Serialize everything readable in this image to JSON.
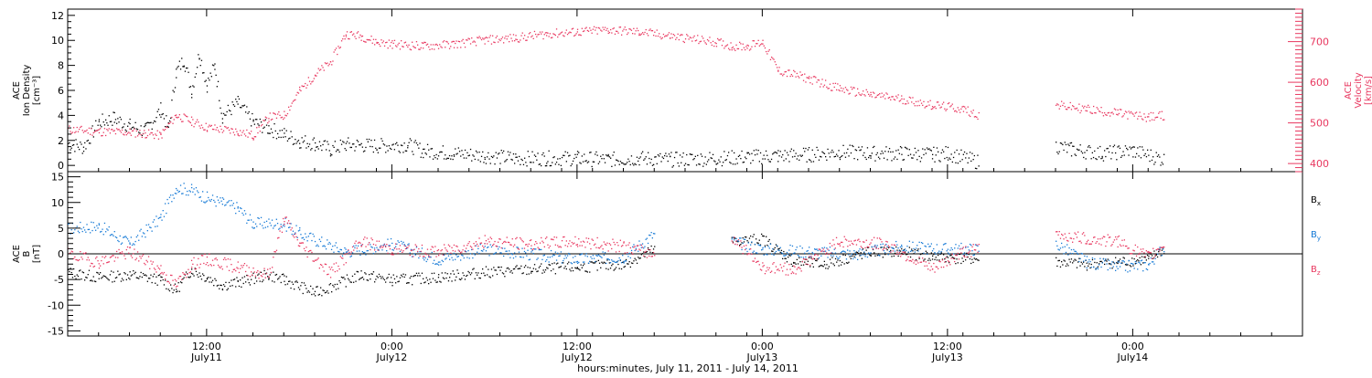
{
  "colors": {
    "black": "#000000",
    "pink": "#e8375f",
    "blue": "#1479d6"
  },
  "xaxis": {
    "label": "hours:minutes, July 11, 2011 - July 14, 2011",
    "range": [
      "2011-07-11 03:00",
      "2011-07-14 11:00"
    ],
    "ticks": [
      {
        "time": "2011-07-11 12:00",
        "line1": "12:00",
        "line2": "July11"
      },
      {
        "time": "2011-07-12 00:00",
        "line1": "0:00",
        "line2": "July12"
      },
      {
        "time": "2011-07-12 12:00",
        "line1": "12:00",
        "line2": "July12"
      },
      {
        "time": "2011-07-13 00:00",
        "line1": "0:00",
        "line2": "July13"
      },
      {
        "time": "2011-07-13 12:00",
        "line1": "12:00",
        "line2": "July13"
      },
      {
        "time": "2011-07-14 00:00",
        "line1": "0:00",
        "line2": "July14"
      }
    ]
  },
  "chart_data": [
    {
      "type": "scatter",
      "panel": "top",
      "ylabel_left": [
        "ACE",
        "Ion Density",
        "[cm⁻³]"
      ],
      "ylabel_right": [
        "ACE",
        "Velocity",
        "[km/s]"
      ],
      "ylim_left": [
        -0.5,
        12.5
      ],
      "ytick_left": [
        0,
        2,
        4,
        6,
        8,
        10,
        12
      ],
      "ylim_right": [
        380,
        780
      ],
      "ytick_right": [
        400,
        500,
        600,
        700
      ],
      "series": [
        {
          "axis": "left",
          "color": "#000000",
          "points": [
            [
              "2011-07-11 03:00",
              1.8
            ],
            [
              "2011-07-11 04:00",
              1.5
            ],
            [
              "2011-07-11 05:00",
              3.5
            ],
            [
              "2011-07-11 06:00",
              3.8
            ],
            [
              "2011-07-11 07:00",
              3.2
            ],
            [
              "2011-07-11 08:00",
              2.8
            ],
            [
              "2011-07-11 09:00",
              4.5
            ],
            [
              "2011-07-11 09:30",
              3.0
            ],
            [
              "2011-07-11 10:00",
              7.5
            ],
            [
              "2011-07-11 10:30",
              8.5
            ],
            [
              "2011-07-11 11:00",
              6.0
            ],
            [
              "2011-07-11 11:30",
              9.0
            ],
            [
              "2011-07-11 12:00",
              6.5
            ],
            [
              "2011-07-11 12:30",
              8.0
            ],
            [
              "2011-07-11 13:00",
              4.0
            ],
            [
              "2011-07-11 14:00",
              5.0
            ],
            [
              "2011-07-11 15:00",
              3.5
            ],
            [
              "2011-07-11 16:00",
              3.0
            ],
            [
              "2011-07-11 17:00",
              2.5
            ],
            [
              "2011-07-11 18:00",
              2.0
            ],
            [
              "2011-07-11 19:00",
              1.8
            ],
            [
              "2011-07-11 20:00",
              1.3
            ],
            [
              "2011-07-11 21:00",
              1.7
            ],
            [
              "2011-07-11 23:00",
              1.6
            ],
            [
              "2011-07-12 01:00",
              1.7
            ],
            [
              "2011-07-12 02:00",
              1.2
            ],
            [
              "2011-07-12 04:00",
              1.0
            ],
            [
              "2011-07-12 06:00",
              0.8
            ],
            [
              "2011-07-12 08:00",
              0.6
            ],
            [
              "2011-07-12 10:00",
              0.6
            ],
            [
              "2011-07-12 12:00",
              0.6
            ],
            [
              "2011-07-12 14:00",
              0.5
            ],
            [
              "2011-07-12 16:00",
              0.6
            ],
            [
              "2011-07-12 18:00",
              0.5
            ],
            [
              "2011-07-12 21:00",
              0.6
            ],
            [
              "2011-07-12 23:00",
              0.7
            ],
            [
              "2011-07-13 01:00",
              0.8
            ],
            [
              "2011-07-13 03:00",
              0.9
            ],
            [
              "2011-07-13 05:00",
              1.1
            ],
            [
              "2011-07-13 07:00",
              1.0
            ],
            [
              "2011-07-13 09:00",
              1.0
            ],
            [
              "2011-07-13 11:00",
              0.9
            ],
            [
              "2011-07-13 12:00",
              1.0
            ],
            [
              "2011-07-13 14:00",
              0.3
            ],
            [
              "2011-07-13 19:00",
              1.6
            ],
            [
              "2011-07-13 20:00",
              1.3
            ],
            [
              "2011-07-13 22:00",
              1.0
            ],
            [
              "2011-07-14 00:00",
              1.2
            ],
            [
              "2011-07-14 02:00",
              0.5
            ]
          ]
        },
        {
          "axis": "right",
          "color": "#e8375f",
          "points": [
            [
              "2011-07-11 03:00",
              485
            ],
            [
              "2011-07-11 05:00",
              480
            ],
            [
              "2011-07-11 07:00",
              478
            ],
            [
              "2011-07-11 08:00",
              475
            ],
            [
              "2011-07-11 09:00",
              470
            ],
            [
              "2011-07-11 10:00",
              520
            ],
            [
              "2011-07-11 11:00",
              505
            ],
            [
              "2011-07-11 12:00",
              490
            ],
            [
              "2011-07-11 14:00",
              480
            ],
            [
              "2011-07-11 15:00",
              470
            ],
            [
              "2011-07-11 16:00",
              515
            ],
            [
              "2011-07-11 17:00",
              520
            ],
            [
              "2011-07-11 18:00",
              580
            ],
            [
              "2011-07-11 19:00",
              620
            ],
            [
              "2011-07-11 20:00",
              650
            ],
            [
              "2011-07-11 21:00",
              720
            ],
            [
              "2011-07-11 22:00",
              715
            ],
            [
              "2011-07-11 23:00",
              700
            ],
            [
              "2011-07-12 00:00",
              695
            ],
            [
              "2011-07-12 02:00",
              690
            ],
            [
              "2011-07-12 04:00",
              695
            ],
            [
              "2011-07-12 06:00",
              705
            ],
            [
              "2011-07-12 08:00",
              710
            ],
            [
              "2011-07-12 10:00",
              720
            ],
            [
              "2011-07-12 12:00",
              725
            ],
            [
              "2011-07-12 14:00",
              730
            ],
            [
              "2011-07-12 16:00",
              725
            ],
            [
              "2011-07-12 18:00",
              715
            ],
            [
              "2011-07-12 21:00",
              700
            ],
            [
              "2011-07-12 22:00",
              690
            ],
            [
              "2011-07-12 23:00",
              690
            ],
            [
              "2011-07-13 00:00",
              700
            ],
            [
              "2011-07-13 01:00",
              630
            ],
            [
              "2011-07-13 03:00",
              610
            ],
            [
              "2011-07-13 05:00",
              585
            ],
            [
              "2011-07-13 07:00",
              570
            ],
            [
              "2011-07-13 09:00",
              560
            ],
            [
              "2011-07-13 11:00",
              545
            ],
            [
              "2011-07-13 13:00",
              535
            ],
            [
              "2011-07-13 14:00",
              520
            ],
            [
              "2011-07-13 19:00",
              545
            ],
            [
              "2011-07-13 21:00",
              535
            ],
            [
              "2011-07-13 23:00",
              525
            ],
            [
              "2011-07-14 01:00",
              515
            ],
            [
              "2011-07-14 02:00",
              520
            ]
          ]
        }
      ]
    },
    {
      "type": "scatter",
      "panel": "bottom",
      "ylabel": [
        "ACE",
        "B",
        "[nT]"
      ],
      "ylim": [
        -16,
        16
      ],
      "yticks": [
        -15,
        -10,
        -5,
        0,
        5,
        10,
        15
      ],
      "zero_line": true,
      "legend": [
        {
          "label": "B",
          "sub": "x",
          "color": "#000000"
        },
        {
          "label": "B",
          "sub": "y",
          "color": "#1479d6"
        },
        {
          "label": "B",
          "sub": "z",
          "color": "#e8375f"
        }
      ],
      "series": [
        {
          "name": "Bx",
          "color": "#000000",
          "points": [
            [
              "2011-07-11 03:00",
              -3.5
            ],
            [
              "2011-07-11 05:00",
              -4.5
            ],
            [
              "2011-07-11 07:00",
              -4.0
            ],
            [
              "2011-07-11 09:00",
              -5.0
            ],
            [
              "2011-07-11 10:00",
              -7.0
            ],
            [
              "2011-07-11 11:00",
              -3.0
            ],
            [
              "2011-07-11 12:00",
              -4.5
            ],
            [
              "2011-07-11 13:00",
              -6.0
            ],
            [
              "2011-07-11 14:00",
              -5.5
            ],
            [
              "2011-07-11 16:00",
              -4.0
            ],
            [
              "2011-07-11 17:00",
              -5.0
            ],
            [
              "2011-07-11 19:00",
              -7.5
            ],
            [
              "2011-07-11 22:00",
              -4.0
            ],
            [
              "2011-07-12 00:00",
              -5.0
            ],
            [
              "2011-07-12 03:00",
              -4.5
            ],
            [
              "2011-07-12 06:00",
              -3.5
            ],
            [
              "2011-07-12 09:00",
              -3.0
            ],
            [
              "2011-07-12 12:00",
              -2.5
            ],
            [
              "2011-07-12 15:00",
              -2.0
            ],
            [
              "2011-07-12 17:00",
              1.0
            ],
            [
              "2011-07-12 22:00",
              2.5
            ],
            [
              "2011-07-13 00:00",
              3.0
            ],
            [
              "2011-07-13 02:00",
              -1.5
            ],
            [
              "2011-07-13 04:00",
              -2.0
            ],
            [
              "2011-07-13 07:00",
              0.5
            ],
            [
              "2011-07-13 09:00",
              0.5
            ],
            [
              "2011-07-13 11:00",
              -0.5
            ],
            [
              "2011-07-13 14:00",
              -1.0
            ],
            [
              "2011-07-13 19:00",
              -1.5
            ],
            [
              "2011-07-13 21:00",
              -2.0
            ],
            [
              "2011-07-13 23:00",
              -1.5
            ],
            [
              "2011-07-14 01:00",
              -1.0
            ],
            [
              "2011-07-14 02:00",
              1.0
            ]
          ]
        },
        {
          "name": "By",
          "color": "#1479d6",
          "points": [
            [
              "2011-07-11 03:00",
              5.0
            ],
            [
              "2011-07-11 05:00",
              5.5
            ],
            [
              "2011-07-11 07:00",
              2.0
            ],
            [
              "2011-07-11 09:00",
              7.0
            ],
            [
              "2011-07-11 10:00",
              13.0
            ],
            [
              "2011-07-11 11:00",
              12.5
            ],
            [
              "2011-07-11 12:00",
              11.0
            ],
            [
              "2011-07-11 13:00",
              10.0
            ],
            [
              "2011-07-11 14:00",
              9.0
            ],
            [
              "2011-07-11 15:00",
              6.0
            ],
            [
              "2011-07-11 17:00",
              6.0
            ],
            [
              "2011-07-11 18:00",
              4.0
            ],
            [
              "2011-07-11 21:00",
              0.5
            ],
            [
              "2011-07-12 00:00",
              2.0
            ],
            [
              "2011-07-12 03:00",
              -1.0
            ],
            [
              "2011-07-12 06:00",
              1.0
            ],
            [
              "2011-07-12 09:00",
              0.0
            ],
            [
              "2011-07-12 12:00",
              -1.0
            ],
            [
              "2011-07-12 15:00",
              -0.5
            ],
            [
              "2011-07-12 17:00",
              4.0
            ],
            [
              "2011-07-12 22:00",
              2.5
            ],
            [
              "2011-07-13 00:00",
              1.0
            ],
            [
              "2011-07-13 03:00",
              0.5
            ],
            [
              "2011-07-13 06:00",
              0.0
            ],
            [
              "2011-07-13 09:00",
              1.5
            ],
            [
              "2011-07-13 12:00",
              1.0
            ],
            [
              "2011-07-13 14:00",
              1.0
            ],
            [
              "2011-07-13 19:00",
              2.0
            ],
            [
              "2011-07-13 21:00",
              -1.5
            ],
            [
              "2011-07-13 23:00",
              -2.5
            ],
            [
              "2011-07-14 01:00",
              -2.0
            ],
            [
              "2011-07-14 02:00",
              1.5
            ]
          ]
        },
        {
          "name": "Bz",
          "color": "#e8375f",
          "points": [
            [
              "2011-07-11 03:00",
              0.0
            ],
            [
              "2011-07-11 05:00",
              -1.5
            ],
            [
              "2011-07-11 07:00",
              0.5
            ],
            [
              "2011-07-11 09:00",
              -3.0
            ],
            [
              "2011-07-11 10:00",
              -6.0
            ],
            [
              "2011-07-11 11:00",
              -2.0
            ],
            [
              "2011-07-11 12:00",
              -1.0
            ],
            [
              "2011-07-11 14:00",
              -2.5
            ],
            [
              "2011-07-11 16:00",
              -4.0
            ],
            [
              "2011-07-11 17:00",
              7.0
            ],
            [
              "2011-07-11 18:00",
              2.0
            ],
            [
              "2011-07-11 20:00",
              -3.5
            ],
            [
              "2011-07-11 22:00",
              2.5
            ],
            [
              "2011-07-12 00:00",
              1.0
            ],
            [
              "2011-07-12 03:00",
              0.5
            ],
            [
              "2011-07-12 06:00",
              2.5
            ],
            [
              "2011-07-12 09:00",
              2.0
            ],
            [
              "2011-07-12 12:00",
              2.5
            ],
            [
              "2011-07-12 15:00",
              1.5
            ],
            [
              "2011-07-12 17:00",
              0.0
            ],
            [
              "2011-07-12 22:00",
              3.5
            ],
            [
              "2011-07-13 00:00",
              -2.5
            ],
            [
              "2011-07-13 02:00",
              -3.0
            ],
            [
              "2011-07-13 05:00",
              2.5
            ],
            [
              "2011-07-13 08:00",
              2.0
            ],
            [
              "2011-07-13 11:00",
              -3.0
            ],
            [
              "2011-07-13 13:00",
              0.5
            ],
            [
              "2011-07-13 14:00",
              1.0
            ],
            [
              "2011-07-13 19:00",
              4.0
            ],
            [
              "2011-07-13 21:00",
              3.0
            ],
            [
              "2011-07-13 23:00",
              2.5
            ],
            [
              "2011-07-14 01:00",
              -0.5
            ],
            [
              "2011-07-14 02:00",
              2.0
            ]
          ]
        }
      ]
    }
  ]
}
